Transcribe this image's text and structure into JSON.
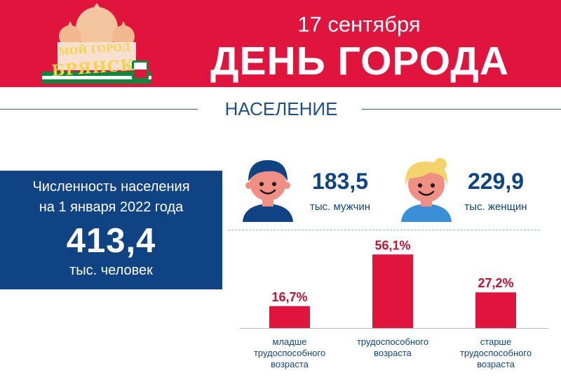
{
  "header": {
    "date": "17 сентября",
    "title": "ДЕНЬ ГОРОДА",
    "logo_line1": "МОЙ ГОРОД",
    "logo_line2": "БРЯНСК"
  },
  "section": {
    "title": "НАСЕЛЕНИЕ"
  },
  "population": {
    "line1": "Численность населения",
    "line2": "на 1 января 2022 года",
    "value": "413,4",
    "unit": "тыс. человек"
  },
  "gender": {
    "men": {
      "value": "183,5",
      "label": "тыс. мужчин",
      "icon": "man-icon"
    },
    "women": {
      "value": "229,9",
      "label": "тыс. женщин",
      "icon": "woman-icon"
    }
  },
  "colors": {
    "banner_red": "#e0143c",
    "brand_blue": "#0f4384",
    "bar_red": "#e0143c",
    "label_red": "#c8102e"
  },
  "chart_data": {
    "type": "bar",
    "categories": [
      [
        "младше",
        "трудоспособного",
        "возраста"
      ],
      [
        "трудоспособного",
        "возраста"
      ],
      [
        "старше",
        "трудоспособного",
        "возраста"
      ]
    ],
    "values": [
      16.7,
      56.1,
      27.2
    ],
    "value_labels": [
      "16,7%",
      "56,1%",
      "27,2%"
    ],
    "unit": "%",
    "ylim": [
      0,
      60
    ],
    "grid": false
  }
}
